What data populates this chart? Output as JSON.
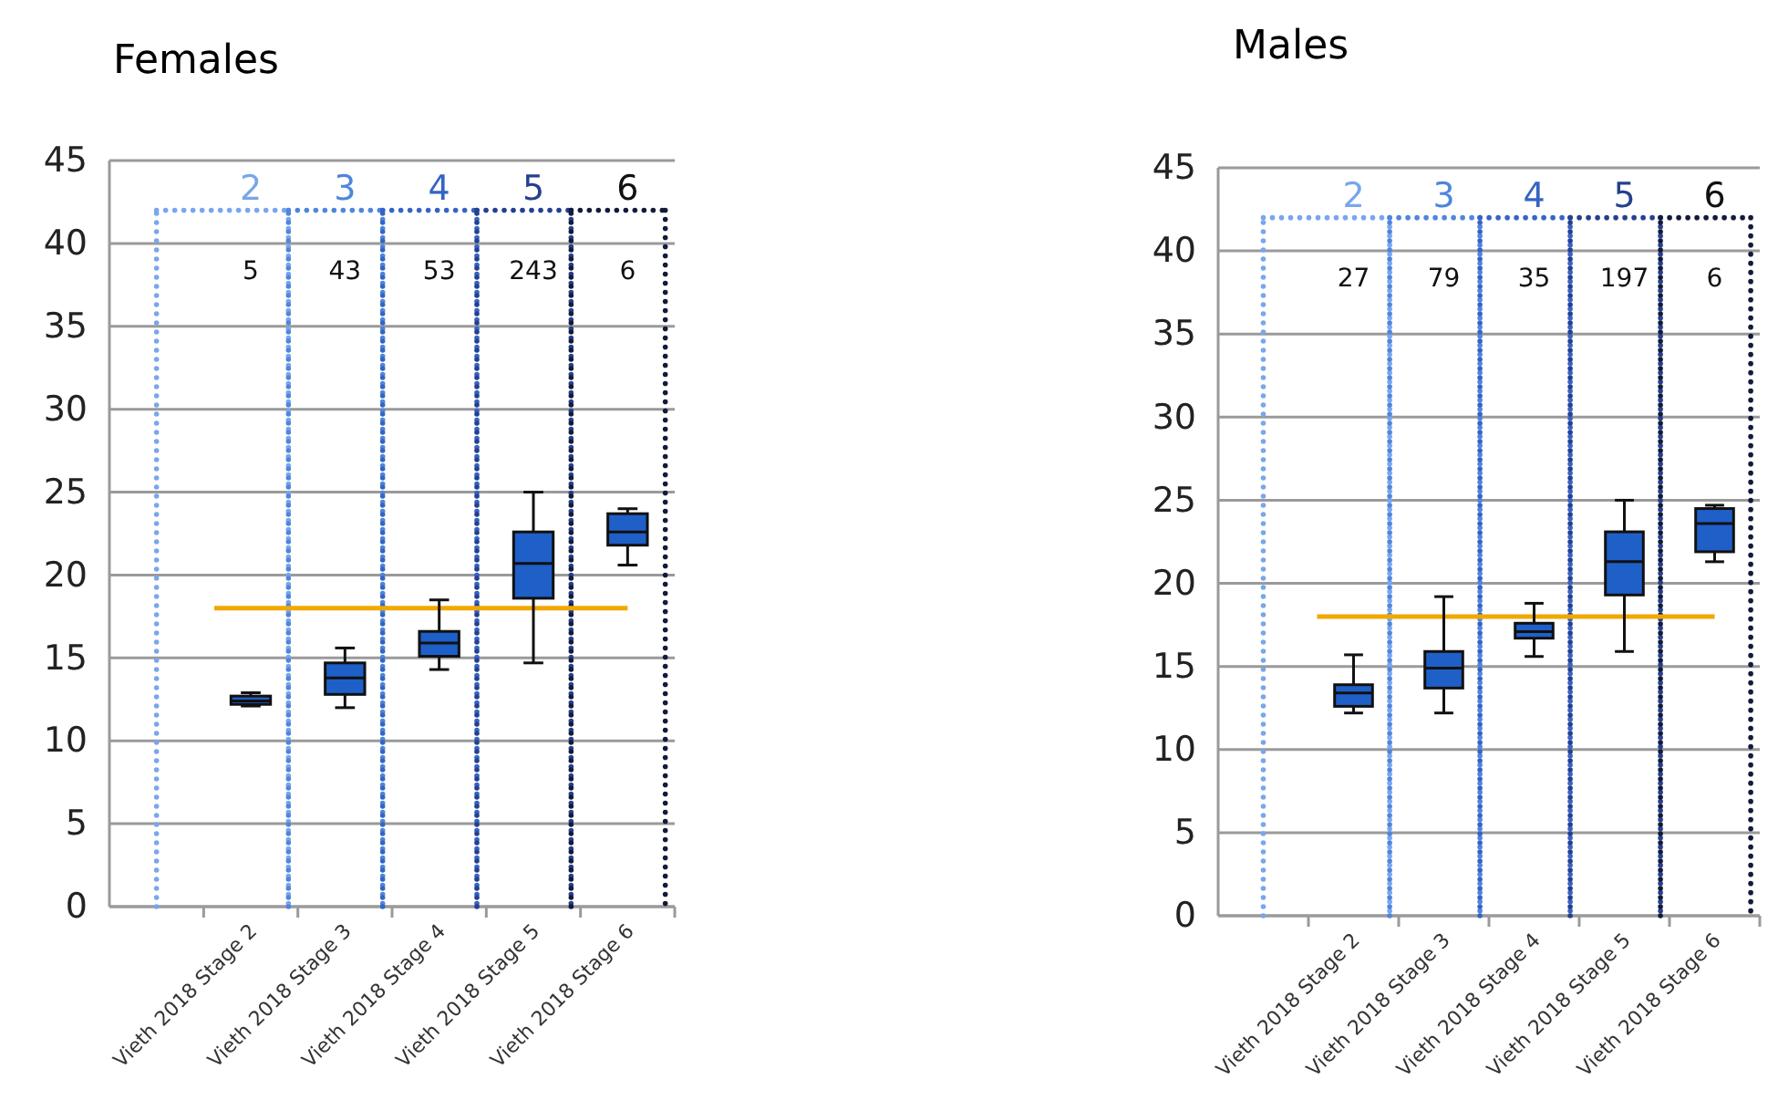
{
  "chart_data": [
    {
      "type": "box",
      "title": "Females",
      "categories": [
        null,
        "Vieth 2018 Stage 2",
        "Vieth 2018 Stage 3",
        "Vieth 2018 Stage 4",
        "Vieth 2018 Stage 5",
        "Vieth 2018 Stage 6"
      ],
      "color": "#1f5fc8",
      "boxes": [
        null,
        {
          "low": 12.1,
          "q1": 12.2,
          "median": 12.4,
          "q3": 12.7,
          "high": 12.9
        },
        {
          "low": 12.0,
          "q1": 12.8,
          "median": 13.8,
          "q3": 14.7,
          "high": 15.6
        },
        {
          "low": 14.3,
          "q1": 15.1,
          "median": 15.9,
          "q3": 16.6,
          "high": 18.5
        },
        {
          "low": 14.7,
          "q1": 18.6,
          "median": 20.7,
          "q3": 22.6,
          "high": 25.0
        },
        {
          "low": 20.6,
          "q1": 21.8,
          "median": 22.6,
          "q3": 23.7,
          "high": 24.0
        }
      ],
      "ylim": [
        0,
        45
      ],
      "yticks": [
        0,
        5,
        10,
        15,
        20,
        25,
        30,
        35,
        40,
        45
      ],
      "grid": "y",
      "ref_lines": [
        {
          "axis": "y",
          "value": 18,
          "color": "#f0a800"
        }
      ],
      "annotations": [
        "2",
        "3",
        "4",
        "5",
        "6",
        "5",
        "43",
        "53",
        "243",
        "6"
      ]
    },
    {
      "type": "box",
      "title": "Males",
      "categories": [
        null,
        "Vieth 2018 Stage 2",
        "Vieth 2018 Stage 3",
        "Vieth 2018 Stage 4",
        "Vieth 2018 Stage 5",
        "Vieth 2018 Stage 6"
      ],
      "color": "#1f5fc8",
      "boxes": [
        null,
        {
          "low": 12.2,
          "q1": 12.6,
          "median": 13.4,
          "q3": 13.9,
          "high": 15.7
        },
        {
          "low": 12.2,
          "q1": 13.7,
          "median": 14.9,
          "q3": 15.9,
          "high": 19.2
        },
        {
          "low": 15.6,
          "q1": 16.7,
          "median": 17.1,
          "q3": 17.6,
          "high": 18.8
        },
        {
          "low": 15.9,
          "q1": 19.3,
          "median": 21.3,
          "q3": 23.1,
          "high": 25.0
        },
        {
          "low": 21.3,
          "q1": 21.9,
          "median": 23.6,
          "q3": 24.5,
          "high": 24.7
        }
      ],
      "ylim": [
        0,
        45
      ],
      "yticks": [
        0,
        5,
        10,
        15,
        20,
        25,
        30,
        35,
        40,
        45
      ],
      "grid": "y",
      "ref_lines": [
        {
          "axis": "y",
          "value": 18,
          "color": "#f0a800"
        }
      ],
      "annotations": [
        "2",
        "3",
        "4",
        "5",
        "6",
        "27",
        "79",
        "35",
        "197",
        "6"
      ]
    }
  ]
}
